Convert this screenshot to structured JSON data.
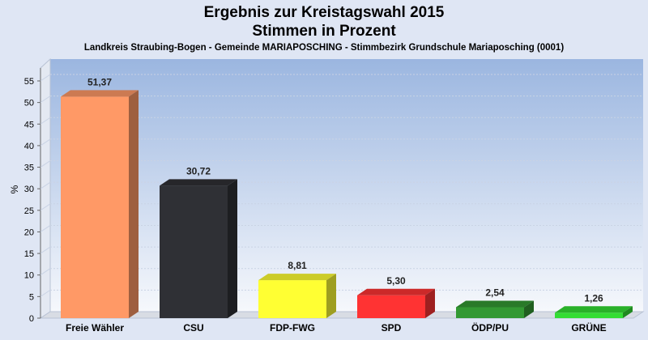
{
  "chart_data": {
    "type": "bar",
    "title": "Ergebnis zur Kreistagswahl 2015",
    "title2": "Stimmen in Prozent",
    "subtitle": "Landkreis Straubing-Bogen - Gemeinde MARIAPOSCHING - Stimmbezirk Grundschule Mariaposching (0001)",
    "ylabel": "%",
    "xlabel": "",
    "ylim": [
      0,
      58
    ],
    "yticks": [
      0,
      5,
      10,
      15,
      20,
      25,
      30,
      35,
      40,
      45,
      50,
      55
    ],
    "grid": true,
    "categories": [
      "Freie Wähler",
      "CSU",
      "FDP-FWG",
      "SPD",
      "ÖDP/PU",
      "GRÜNE"
    ],
    "values": [
      51.37,
      30.72,
      8.81,
      5.3,
      2.54,
      1.26
    ],
    "value_labels": [
      "51,37",
      "30,72",
      "8,81",
      "5,30",
      "2,54",
      "1,26"
    ],
    "colors": [
      "#ff9966",
      "#2f3035",
      "#ffff33",
      "#ff3333",
      "#339933",
      "#33dd33"
    ]
  }
}
